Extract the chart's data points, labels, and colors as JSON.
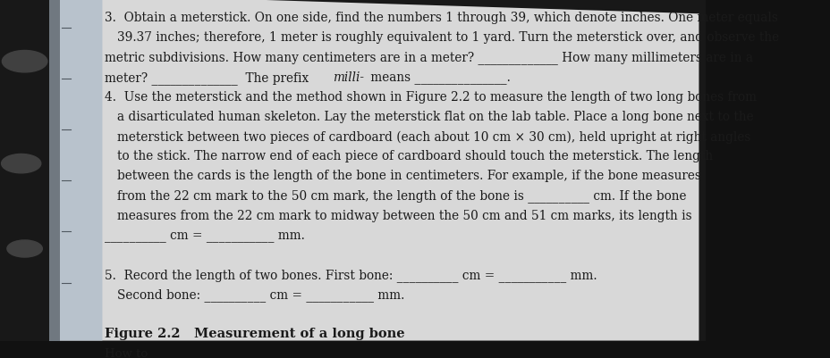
{
  "bg_dark": "#1a1a1a",
  "bg_top_right": "#2a2a2a",
  "page_color": "#dcdcdc",
  "spine_color": "#b8c0c8",
  "spine_dark": "#8890a0",
  "text_color": "#1a1a1a",
  "lines": [
    {
      "indent": 0,
      "text": "3.  Obtain a meterstick. On one side, find the numbers 1 through 39, which denote inches. One meter equals"
    },
    {
      "indent": 1,
      "text": "39.37 inches; therefore, 1 meter is roughly equivalent to 1 yard. Turn the meterstick over, and observe the"
    },
    {
      "indent": 0,
      "text": "metric subdivisions. How many centimeters are in a meter? _____________ How many millimeters are in a"
    },
    {
      "indent": 0,
      "text": "meter? ______________  The prefix milli- means _______________."
    },
    {
      "indent": 0,
      "text": "4.  Use the meterstick and the method shown in Figure 2.2 to measure the length of two long bones from"
    },
    {
      "indent": 1,
      "text": "a disarticulated human skeleton. Lay the meterstick flat on the lab table. Place a long bone next to the"
    },
    {
      "indent": 1,
      "text": "meterstick between two pieces of cardboard (each about 10 cm × 30 cm), held upright at right angles"
    },
    {
      "indent": 1,
      "text": "to the stick. The narrow end of each piece of cardboard should touch the meterstick. The length"
    },
    {
      "indent": 1,
      "text": "between the cards is the length of the bone in centimeters. For example, if the bone measures"
    },
    {
      "indent": 1,
      "text": "from the 22 cm mark to the 50 cm mark, the length of the bone is __________ cm. If the bone"
    },
    {
      "indent": 1,
      "text": "measures from the 22 cm mark to midway between the 50 cm and 51 cm marks, its length is"
    },
    {
      "indent": 0,
      "text": "__________ cm = ___________ mm."
    },
    {
      "indent": 0,
      "text": ""
    },
    {
      "indent": 0,
      "text": "5.  Record the length of two bones. First bone: __________ cm = ___________ mm."
    },
    {
      "indent": 1,
      "text": "Second bone: __________ cm = ___________ mm."
    },
    {
      "indent": 0,
      "text": ""
    },
    {
      "indent": 0,
      "text": "Figure 2.2   Measurement of a long bone",
      "bold": true,
      "size": 10.5
    },
    {
      "indent": 0,
      "text": "How to",
      "size": 9.5
    }
  ],
  "italic_line": 3,
  "italic_start": "meter? ______________  The prefix ",
  "italic_word": "milli-",
  "italic_end": " means _______________.",
  "fontsize": 9.8
}
